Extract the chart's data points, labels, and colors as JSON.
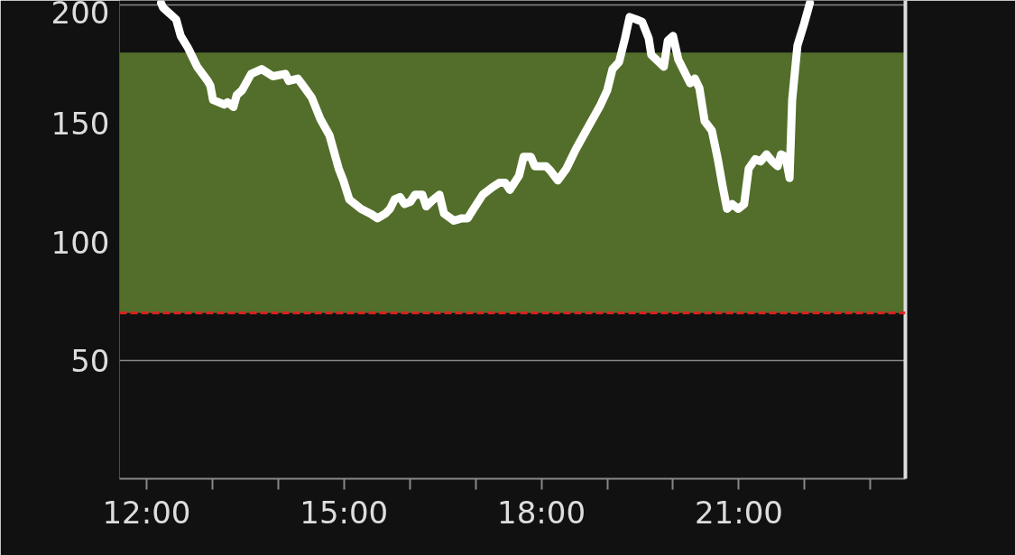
{
  "chart_data": {
    "type": "line",
    "x": [
      12.22,
      12.25,
      12.45,
      12.52,
      12.63,
      12.77,
      12.93,
      12.97,
      13.01,
      13.18,
      13.23,
      13.32,
      13.37,
      13.45,
      13.59,
      13.75,
      13.92,
      14.11,
      14.16,
      14.3,
      14.38,
      14.51,
      14.64,
      14.78,
      14.92,
      14.99,
      15.08,
      15.26,
      15.4,
      15.51,
      15.63,
      15.7,
      15.77,
      15.85,
      15.92,
      16.01,
      16.08,
      16.19,
      16.25,
      16.36,
      16.45,
      16.52,
      16.67,
      16.79,
      16.88,
      16.97,
      17.11,
      17.25,
      17.36,
      17.45,
      17.52,
      17.66,
      17.73,
      17.84,
      17.9,
      18.07,
      18.14,
      18.25,
      18.38,
      18.52,
      18.68,
      18.82,
      18.9,
      19.0,
      19.08,
      19.18,
      19.27,
      19.34,
      19.44,
      19.53,
      19.63,
      19.67,
      19.86,
      19.92,
      20.0,
      20.08,
      20.26,
      20.33,
      20.4,
      20.48,
      20.59,
      20.68,
      20.75,
      20.82,
      20.9,
      20.99,
      21.08,
      21.15,
      21.25,
      21.33,
      21.42,
      21.51,
      21.59,
      21.64,
      21.71,
      21.77,
      21.81,
      21.89,
      21.99,
      22.08
    ],
    "series": [
      {
        "color": "#ffffff",
        "values": [
          201,
          199,
          194,
          187,
          182,
          174,
          168,
          166,
          160,
          158,
          159,
          157,
          162,
          164,
          171,
          173,
          170,
          171,
          168,
          169,
          166,
          161,
          152,
          145,
          131,
          126,
          118,
          114,
          112,
          110,
          112,
          114,
          118,
          119,
          116,
          117,
          120,
          120,
          115,
          118,
          120,
          112,
          109,
          110,
          110,
          114,
          120,
          123,
          125,
          125,
          122,
          128,
          136,
          136,
          132,
          132,
          130,
          126,
          131,
          139,
          147,
          154,
          158,
          164,
          173,
          176,
          186,
          195,
          194,
          193,
          186,
          179,
          174,
          185,
          187,
          177,
          167,
          169,
          165,
          151,
          147,
          135,
          124,
          114,
          116,
          114,
          116,
          131,
          135,
          134,
          137,
          134,
          132,
          137,
          136,
          127,
          160,
          183,
          192,
          201
        ]
      }
    ],
    "xlim": [
      11.59,
      23.53
    ],
    "ylim": [
      0,
      202
    ],
    "xticks": [
      {
        "value": 12,
        "label": "12:00"
      },
      {
        "value": 13,
        "label": null
      },
      {
        "value": 14,
        "label": null
      },
      {
        "value": 15,
        "label": "15:00"
      },
      {
        "value": 16,
        "label": null
      },
      {
        "value": 17,
        "label": null
      },
      {
        "value": 18,
        "label": "18:00"
      },
      {
        "value": 19,
        "label": null
      },
      {
        "value": 20,
        "label": null
      },
      {
        "value": 21,
        "label": "21:00"
      },
      {
        "value": 22,
        "label": null
      },
      {
        "value": 23,
        "label": null
      }
    ],
    "yticks": [
      50,
      100,
      150,
      200
    ],
    "grid": "y",
    "bands": [
      {
        "axis": "y",
        "from": 70,
        "to": 180,
        "color": "#526e2a"
      }
    ],
    "ref_lines": [
      {
        "axis": "y",
        "value": 70,
        "color": "#e02020",
        "line_style": "dashed"
      }
    ]
  }
}
